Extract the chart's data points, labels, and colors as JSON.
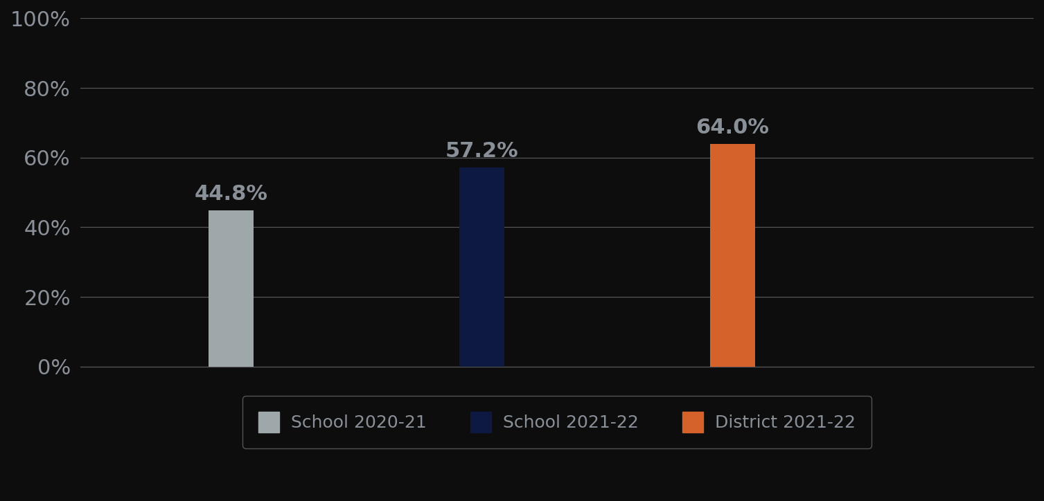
{
  "categories": [
    "School 2020-21",
    "School 2021-22",
    "District 2021-22"
  ],
  "values": [
    0.448,
    0.572,
    0.64
  ],
  "labels": [
    "44.8%",
    "57.2%",
    "64.0%"
  ],
  "bar_colors": [
    "#9ea8aa",
    "#0d1941",
    "#d4622a"
  ],
  "background_color": "#0d0d0d",
  "text_color": "#8a9098",
  "ylim": [
    0,
    1.0
  ],
  "yticks": [
    0.0,
    0.2,
    0.4,
    0.6,
    0.8,
    1.0
  ],
  "ytick_labels": [
    "0%",
    "20%",
    "40%",
    "60%",
    "80%",
    "100%"
  ],
  "bar_width": 0.18,
  "x_positions": [
    1,
    2,
    3
  ],
  "xlim": [
    0.4,
    4.2
  ],
  "label_fontsize": 22,
  "tick_fontsize": 22,
  "legend_fontsize": 18,
  "grid_color": "#555555",
  "legend_edge_color": "#666666",
  "legend_bg_color": "#0d0d0d"
}
